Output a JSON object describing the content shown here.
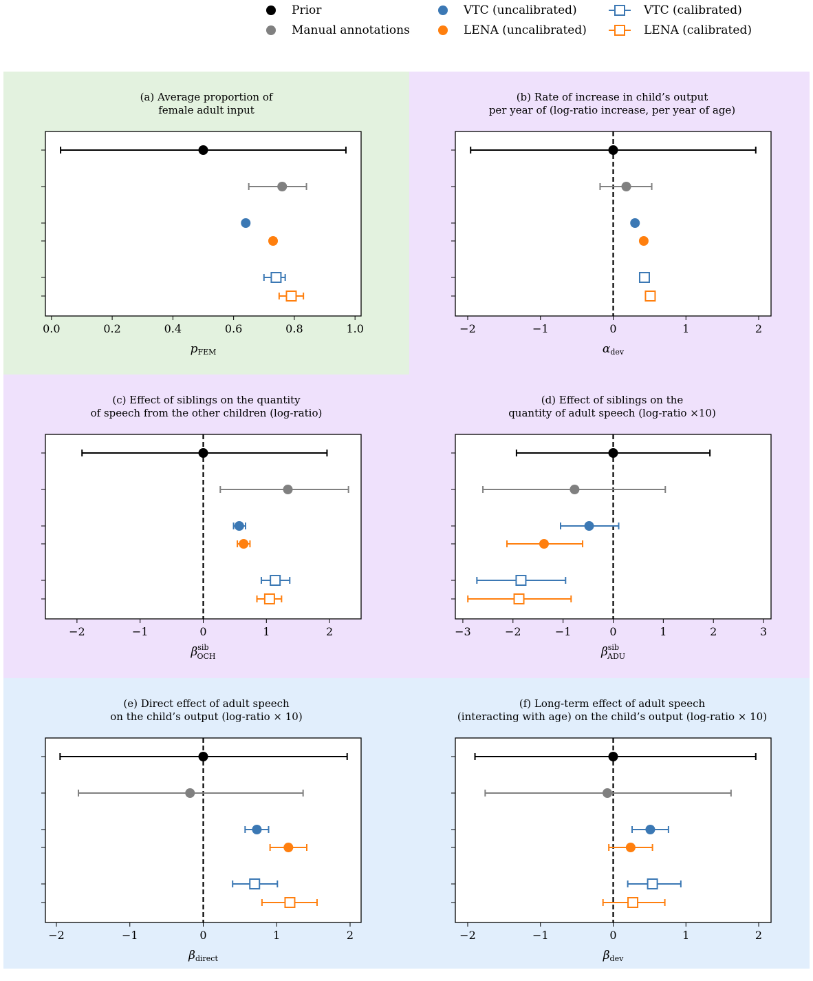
{
  "colors": {
    "prior": "#000000",
    "manual": "#808080",
    "vtc": "#3b78b4",
    "lena": "#ff7f0e",
    "band_green": "#e3f2df",
    "band_purple": "#efe1fc",
    "band_blue": "#e1eefc"
  },
  "legend": [
    {
      "key": "prior",
      "label": "Prior",
      "marker": "dot"
    },
    {
      "key": "manual",
      "label": "Manual annotations",
      "marker": "dot"
    },
    {
      "key": "vtc",
      "label": "VTC (uncalibrated)",
      "marker": "dot"
    },
    {
      "key": "lena",
      "label": "LENA (uncalibrated)",
      "marker": "dot"
    },
    {
      "key": "vtc",
      "label": "VTC (calibrated)",
      "marker": "square-line"
    },
    {
      "key": "lena",
      "label": "LENA (calibrated)",
      "marker": "square-line"
    }
  ],
  "chart_data": [
    {
      "type": "errorbar",
      "title": "(a) Average proportion of\nfemale adult input",
      "xlabel": "p_FEM",
      "xlim": [
        -0.02,
        1.02
      ],
      "xticks": [
        0.0,
        0.2,
        0.4,
        0.6,
        0.8,
        1.0
      ],
      "xtick_labels": [
        "0.0",
        "0.2",
        "0.4",
        "0.6",
        "0.8",
        "1.0"
      ],
      "zero_line": false,
      "band": "green",
      "points": [
        {
          "series": "Prior",
          "key": "prior",
          "marker": "dot",
          "value": 0.5,
          "lo": 0.03,
          "hi": 0.97
        },
        {
          "series": "Manual annotations",
          "key": "manual",
          "marker": "dot",
          "value": 0.76,
          "lo": 0.65,
          "hi": 0.84
        },
        {
          "series": "VTC (uncalibrated)",
          "key": "vtc",
          "marker": "dot",
          "value": 0.64,
          "lo": 0.635,
          "hi": 0.645
        },
        {
          "series": "LENA (uncalibrated)",
          "key": "lena",
          "marker": "dot",
          "value": 0.73,
          "lo": 0.72,
          "hi": 0.74
        },
        {
          "series": "VTC (calibrated)",
          "key": "vtc",
          "marker": "square",
          "value": 0.74,
          "lo": 0.7,
          "hi": 0.77
        },
        {
          "series": "LENA (calibrated)",
          "key": "lena",
          "marker": "square",
          "value": 0.79,
          "lo": 0.75,
          "hi": 0.83
        }
      ]
    },
    {
      "type": "errorbar",
      "title": "(b) Rate of increase in child’s output\nper year of (log-ratio increase, per year of age)",
      "xlabel": "α_dev",
      "xlim": [
        -2.17,
        2.17
      ],
      "xticks": [
        -2,
        -1,
        0,
        1,
        2
      ],
      "xtick_labels": [
        "−2",
        "−1",
        "0",
        "1",
        "2"
      ],
      "zero_line": true,
      "band": "purple",
      "points": [
        {
          "series": "Prior",
          "key": "prior",
          "marker": "dot",
          "value": 0.0,
          "lo": -1.96,
          "hi": 1.96
        },
        {
          "series": "Manual annotations",
          "key": "manual",
          "marker": "dot",
          "value": 0.18,
          "lo": -0.18,
          "hi": 0.53
        },
        {
          "series": "VTC (uncalibrated)",
          "key": "vtc",
          "marker": "dot",
          "value": 0.3,
          "lo": 0.28,
          "hi": 0.32
        },
        {
          "series": "LENA (uncalibrated)",
          "key": "lena",
          "marker": "dot",
          "value": 0.42,
          "lo": 0.39,
          "hi": 0.45
        },
        {
          "series": "VTC (calibrated)",
          "key": "vtc",
          "marker": "square",
          "value": 0.43,
          "lo": 0.39,
          "hi": 0.47
        },
        {
          "series": "LENA (calibrated)",
          "key": "lena",
          "marker": "square",
          "value": 0.51,
          "lo": 0.45,
          "hi": 0.56
        }
      ]
    },
    {
      "type": "errorbar",
      "title": "(c) Effect of siblings on the quantity\nof speech from the other children (log-ratio)",
      "xlabel": "β_OCH^sib",
      "xlim": [
        -2.5,
        2.5
      ],
      "xticks": [
        -2,
        -1,
        0,
        1,
        2
      ],
      "xtick_labels": [
        "−2",
        "−1",
        "0",
        "1",
        "2"
      ],
      "zero_line": true,
      "band": "purple",
      "points": [
        {
          "series": "Prior",
          "key": "prior",
          "marker": "dot",
          "value": 0.0,
          "lo": -1.92,
          "hi": 1.96
        },
        {
          "series": "Manual annotations",
          "key": "manual",
          "marker": "dot",
          "value": 1.34,
          "lo": 0.27,
          "hi": 2.3
        },
        {
          "series": "VTC (uncalibrated)",
          "key": "vtc",
          "marker": "dot",
          "value": 0.57,
          "lo": 0.48,
          "hi": 0.67
        },
        {
          "series": "LENA (uncalibrated)",
          "key": "lena",
          "marker": "dot",
          "value": 0.64,
          "lo": 0.54,
          "hi": 0.74
        },
        {
          "series": "VTC (calibrated)",
          "key": "vtc",
          "marker": "square",
          "value": 1.14,
          "lo": 0.92,
          "hi": 1.37
        },
        {
          "series": "LENA (calibrated)",
          "key": "lena",
          "marker": "square",
          "value": 1.05,
          "lo": 0.85,
          "hi": 1.24
        }
      ]
    },
    {
      "type": "errorbar",
      "title": "(d) Effect of siblings on the\nquantity of adult speech (log-ratio ×10)",
      "xlabel": "β_ADU^sib",
      "xlim": [
        -3.15,
        3.15
      ],
      "xticks": [
        -3,
        -2,
        -1,
        0,
        1,
        2,
        3
      ],
      "xtick_labels": [
        "−3",
        "−2",
        "−1",
        "0",
        "1",
        "2",
        "3"
      ],
      "zero_line": true,
      "band": "purple",
      "points": [
        {
          "series": "Prior",
          "key": "prior",
          "marker": "dot",
          "value": 0.0,
          "lo": -1.93,
          "hi": 1.93
        },
        {
          "series": "Manual annotations",
          "key": "manual",
          "marker": "dot",
          "value": -0.77,
          "lo": -2.6,
          "hi": 1.04
        },
        {
          "series": "VTC (uncalibrated)",
          "key": "vtc",
          "marker": "dot",
          "value": -0.48,
          "lo": -1.05,
          "hi": 0.11
        },
        {
          "series": "LENA (uncalibrated)",
          "key": "lena",
          "marker": "dot",
          "value": -1.38,
          "lo": -2.12,
          "hi": -0.61
        },
        {
          "series": "VTC (calibrated)",
          "key": "vtc",
          "marker": "square",
          "value": -1.84,
          "lo": -2.72,
          "hi": -0.95
        },
        {
          "series": "LENA (calibrated)",
          "key": "lena",
          "marker": "square",
          "value": -1.88,
          "lo": -2.9,
          "hi": -0.84
        }
      ]
    },
    {
      "type": "errorbar",
      "title": "(e) Direct effect of adult speech\non the child’s output (log-ratio × 10)",
      "xlabel": "β_direct",
      "xlim": [
        -2.15,
        2.15
      ],
      "xticks": [
        -2,
        -1,
        0,
        1,
        2
      ],
      "xtick_labels": [
        "−2",
        "−1",
        "0",
        "1",
        "2"
      ],
      "zero_line": true,
      "band": "blue",
      "points": [
        {
          "series": "Prior",
          "key": "prior",
          "marker": "dot",
          "value": 0.0,
          "lo": -1.95,
          "hi": 1.96
        },
        {
          "series": "Manual annotations",
          "key": "manual",
          "marker": "dot",
          "value": -0.18,
          "lo": -1.7,
          "hi": 1.36
        },
        {
          "series": "VTC (uncalibrated)",
          "key": "vtc",
          "marker": "dot",
          "value": 0.73,
          "lo": 0.57,
          "hi": 0.89
        },
        {
          "series": "LENA (uncalibrated)",
          "key": "lena",
          "marker": "dot",
          "value": 1.16,
          "lo": 0.91,
          "hi": 1.41
        },
        {
          "series": "VTC (calibrated)",
          "key": "vtc",
          "marker": "square",
          "value": 0.7,
          "lo": 0.4,
          "hi": 1.01
        },
        {
          "series": "LENA (calibrated)",
          "key": "lena",
          "marker": "square",
          "value": 1.18,
          "lo": 0.8,
          "hi": 1.55
        }
      ]
    },
    {
      "type": "errorbar",
      "title": "(f) Long-term effect of adult speech\n(interacting with age) on the child’s output (log-ratio × 10)",
      "xlabel": "β_dev",
      "xlim": [
        -2.17,
        2.17
      ],
      "xticks": [
        -2,
        -1,
        0,
        1,
        2
      ],
      "xtick_labels": [
        "−2",
        "−1",
        "0",
        "1",
        "2"
      ],
      "zero_line": true,
      "band": "blue",
      "points": [
        {
          "series": "Prior",
          "key": "prior",
          "marker": "dot",
          "value": 0.0,
          "lo": -1.9,
          "hi": 1.96
        },
        {
          "series": "Manual annotations",
          "key": "manual",
          "marker": "dot",
          "value": -0.08,
          "lo": -1.76,
          "hi": 1.62
        },
        {
          "series": "VTC (uncalibrated)",
          "key": "vtc",
          "marker": "dot",
          "value": 0.51,
          "lo": 0.26,
          "hi": 0.76
        },
        {
          "series": "LENA (uncalibrated)",
          "key": "lena",
          "marker": "dot",
          "value": 0.24,
          "lo": -0.06,
          "hi": 0.54
        },
        {
          "series": "VTC (calibrated)",
          "key": "vtc",
          "marker": "square",
          "value": 0.54,
          "lo": 0.2,
          "hi": 0.93
        },
        {
          "series": "LENA (calibrated)",
          "key": "lena",
          "marker": "square",
          "value": 0.27,
          "lo": -0.14,
          "hi": 0.71
        }
      ]
    }
  ]
}
